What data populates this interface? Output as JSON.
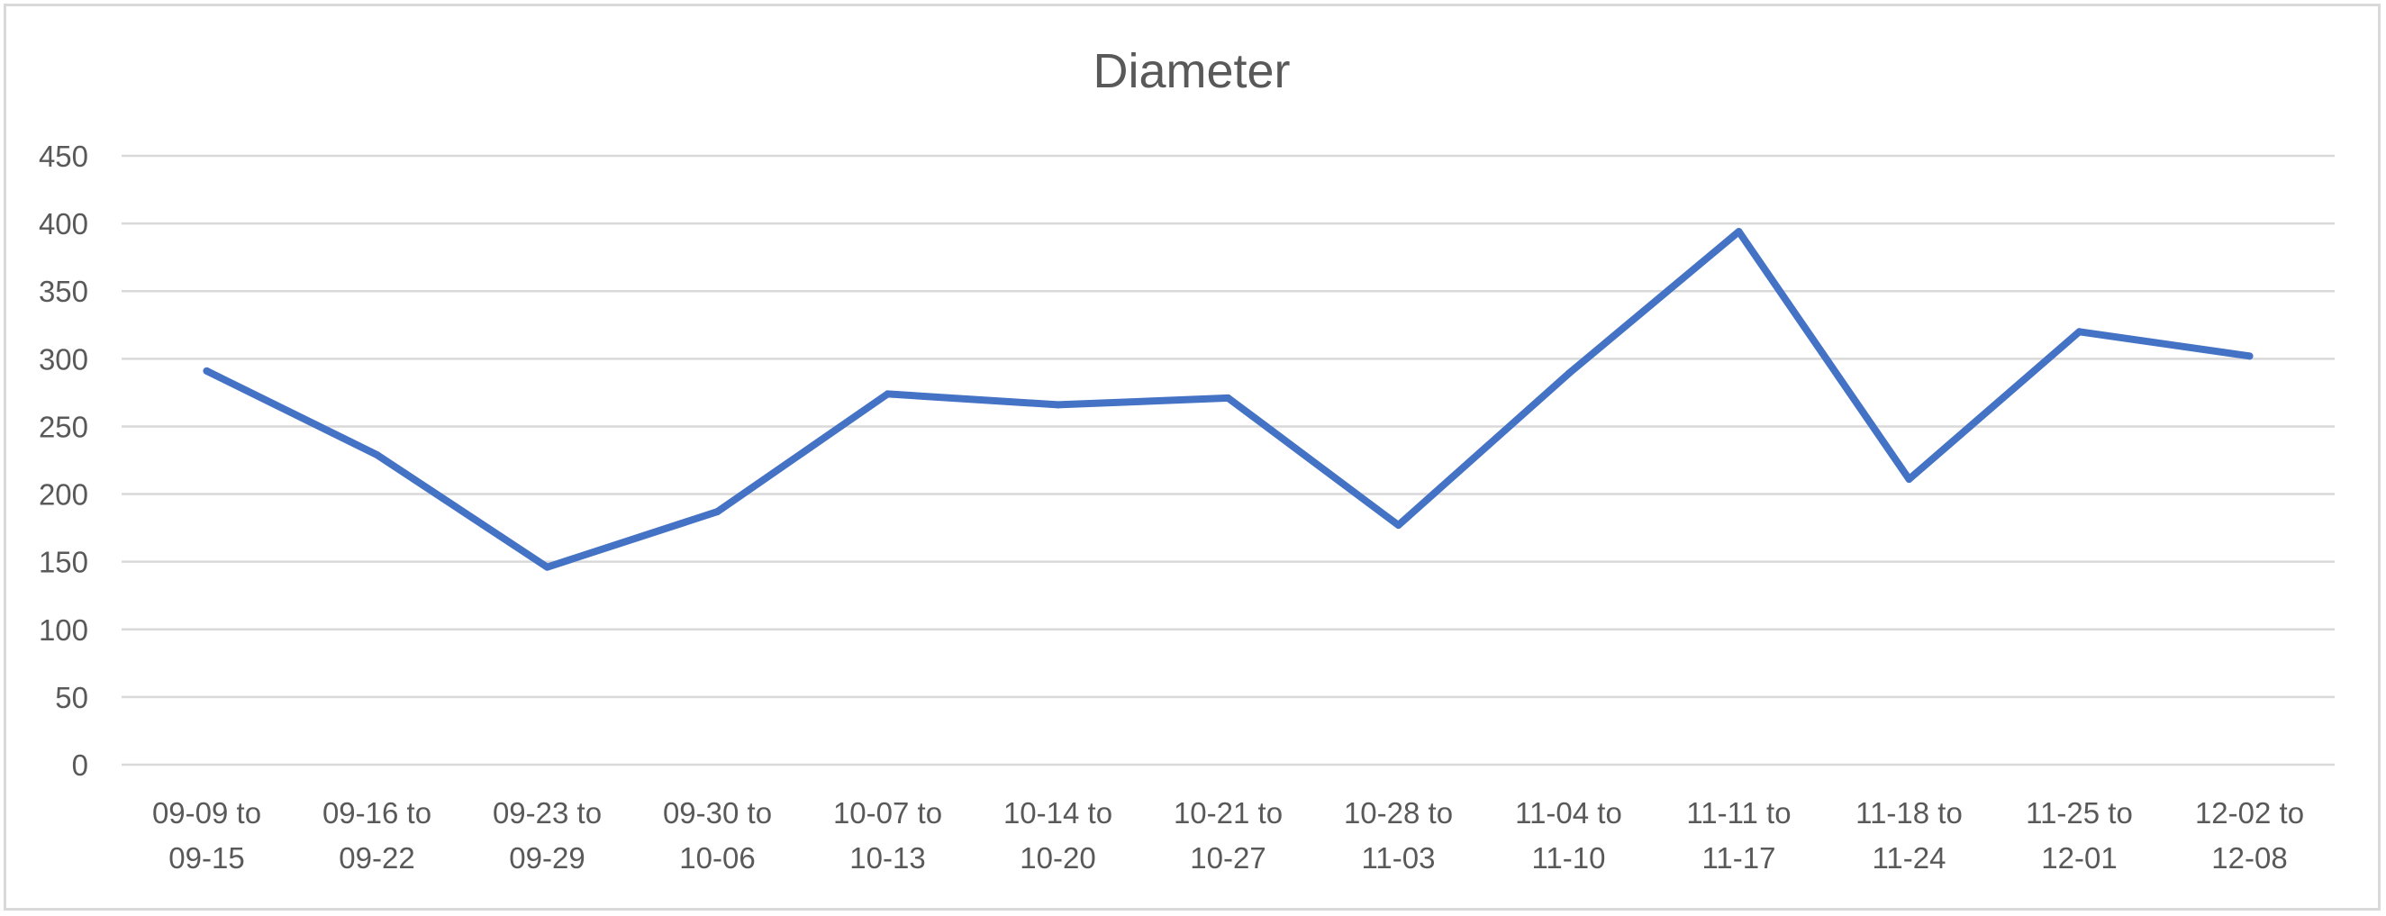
{
  "chart_data": {
    "type": "line",
    "title": "Diameter",
    "xlabel": "",
    "ylabel": "",
    "categories": [
      [
        "09-09 to",
        "09-15"
      ],
      [
        "09-16 to",
        "09-22"
      ],
      [
        "09-23 to",
        "09-29"
      ],
      [
        "09-30 to",
        "10-06"
      ],
      [
        "10-07 to",
        "10-13"
      ],
      [
        "10-14 to",
        "10-20"
      ],
      [
        "10-21 to",
        "10-27"
      ],
      [
        "10-28 to",
        "11-03"
      ],
      [
        "11-04 to",
        "11-10"
      ],
      [
        "11-11 to",
        "11-17"
      ],
      [
        "11-18 to",
        "11-24"
      ],
      [
        "11-25 to",
        "12-01"
      ],
      [
        "12-02 to",
        "12-08"
      ]
    ],
    "series": [
      {
        "values": [
          291,
          229,
          146,
          187,
          274,
          266,
          271,
          177,
          289,
          394,
          211,
          320,
          302
        ],
        "color": "#4472c4"
      }
    ],
    "ylim": [
      0,
      450
    ],
    "yticks": [
      0,
      50,
      100,
      150,
      200,
      250,
      300,
      350,
      400,
      450
    ],
    "grid": true,
    "legend": "none"
  }
}
